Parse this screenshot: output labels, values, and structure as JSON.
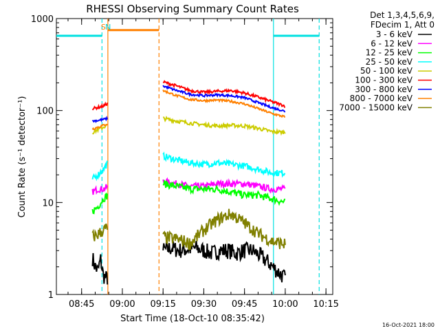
{
  "chart_data": {
    "type": "line",
    "title": "RHESSI Observing Summary Count Rates",
    "xlabel": "Start Time (18-Oct-10 08:35:42)",
    "ylabel": "Count Rate (s⁻¹ detector⁻¹)",
    "yscale": "log",
    "ylim": [
      1,
      1000
    ],
    "xlim": [
      "08:35:42",
      "10:17:30"
    ],
    "y_ticks": [
      "1",
      "10",
      "100",
      "1000"
    ],
    "x_ticks": [
      "08:45",
      "09:00",
      "09:15",
      "09:30",
      "09:45",
      "10:00",
      "10:15"
    ],
    "legend_header": [
      "Det 1,3,4,5,6,9,",
      "FDecim 1, Att 0"
    ],
    "legend_position": "top-right, outside plot",
    "footer": "16-Oct-2021 18:00",
    "grid": false,
    "annotations": [
      {
        "label": "S",
        "x": "08:53:00",
        "color": "#ff8000"
      },
      {
        "label": "N",
        "x": "08:54:45",
        "color": "#00cccc"
      }
    ],
    "flags": [
      {
        "name": "night",
        "color": "#00e0e0",
        "level": 650,
        "spans": [
          [
            "08:35:42",
            "08:52:30"
          ],
          [
            "09:55:40",
            "10:12:30"
          ]
        ]
      },
      {
        "name": "saa",
        "color": "#ff8000",
        "level": 750,
        "spans": [
          [
            "08:54:40",
            "09:13:30"
          ]
        ]
      }
    ],
    "vertical_lines": [
      {
        "x": "08:52:30",
        "color": "#00e0e0",
        "dash": true
      },
      {
        "x": "08:54:40",
        "color": "#ff8000",
        "dash": false
      },
      {
        "x": "09:13:30",
        "color": "#ff8000",
        "dash": true
      },
      {
        "x": "09:55:40",
        "color": "#00e0e0",
        "dash": false
      },
      {
        "x": "10:12:30",
        "color": "#00e0e0",
        "dash": true
      }
    ],
    "series": [
      {
        "name": "3 - 6 keV",
        "color": "#000000",
        "segments": [
          {
            "x": [
              "08:49:00",
              "08:50:00",
              "08:51:00",
              "08:52:00",
              "08:53:00",
              "08:54:00",
              "08:54:40"
            ],
            "y": [
              2.5,
              2.0,
              1.8,
              2.4,
              1.6,
              1.5,
              1.5
            ]
          },
          {
            "x": [
              "09:15:00",
              "09:18:00",
              "09:21:00",
              "09:24:00",
              "09:27:00",
              "09:30:00",
              "09:33:00",
              "09:36:00",
              "09:39:00",
              "09:42:00",
              "09:45:00",
              "09:48:00",
              "09:51:00",
              "09:54:00",
              "09:57:00",
              "10:00:00"
            ],
            "y": [
              3.0,
              3.2,
              3.0,
              3.1,
              3.2,
              3.0,
              2.8,
              3.0,
              3.0,
              2.8,
              3.0,
              3.0,
              2.6,
              2.2,
              1.8,
              1.5
            ]
          }
        ]
      },
      {
        "name": "6 - 12 keV",
        "color": "#ff00ff",
        "segments": [
          {
            "x": [
              "08:49:00",
              "08:51:00",
              "08:53:00",
              "08:54:40"
            ],
            "y": [
              13,
              14,
              14,
              15
            ]
          },
          {
            "x": [
              "09:15:00",
              "09:20:00",
              "09:25:00",
              "09:30:00",
              "09:35:00",
              "09:40:00",
              "09:45:00",
              "09:50:00",
              "09:55:00",
              "10:00:00"
            ],
            "y": [
              17,
              16,
              15,
              15,
              16,
              16,
              16,
              15,
              14,
              14
            ]
          }
        ]
      },
      {
        "name": "12 - 25 keV",
        "color": "#00ff00",
        "segments": [
          {
            "x": [
              "08:49:00",
              "08:51:00",
              "08:53:00",
              "08:54:40"
            ],
            "y": [
              8,
              9,
              11,
              12
            ]
          },
          {
            "x": [
              "09:15:00",
              "09:20:00",
              "09:25:00",
              "09:30:00",
              "09:35:00",
              "09:40:00",
              "09:45:00",
              "09:50:00",
              "09:55:00",
              "10:00:00"
            ],
            "y": [
              16,
              15,
              14,
              14,
              14,
              13,
              12,
              12,
              11,
              10
            ]
          }
        ]
      },
      {
        "name": "25 - 50 keV",
        "color": "#00ffff",
        "segments": [
          {
            "x": [
              "08:49:00",
              "08:51:00",
              "08:53:00",
              "08:54:40"
            ],
            "y": [
              18,
              20,
              23,
              27
            ]
          },
          {
            "x": [
              "09:15:00",
              "09:20:00",
              "09:25:00",
              "09:30:00",
              "09:35:00",
              "09:40:00",
              "09:45:00",
              "09:50:00",
              "09:55:00",
              "10:00:00"
            ],
            "y": [
              32,
              29,
              27,
              26,
              27,
              26,
              25,
              23,
              21,
              21
            ]
          }
        ]
      },
      {
        "name": "50 - 100 keV",
        "color": "#cccc00",
        "segments": [
          {
            "x": [
              "08:49:00",
              "08:51:00",
              "08:53:00",
              "08:54:40"
            ],
            "y": [
              58,
              62,
              66,
              70
            ]
          },
          {
            "x": [
              "09:15:00",
              "09:20:00",
              "09:25:00",
              "09:30:00",
              "09:35:00",
              "09:40:00",
              "09:45:00",
              "09:50:00",
              "09:55:00",
              "10:00:00"
            ],
            "y": [
              82,
              77,
              73,
              70,
              68,
              69,
              68,
              64,
              59,
              58
            ]
          }
        ]
      },
      {
        "name": "100 - 300 keV",
        "color": "#ff0000",
        "segments": [
          {
            "x": [
              "08:49:00",
              "08:51:00",
              "08:53:00",
              "08:54:40"
            ],
            "y": [
              105,
              108,
              112,
              120
            ]
          },
          {
            "x": [
              "09:15:00",
              "09:20:00",
              "09:25:00",
              "09:30:00",
              "09:35:00",
              "09:40:00",
              "09:45:00",
              "09:50:00",
              "09:55:00",
              "10:00:00"
            ],
            "y": [
              205,
              185,
              165,
              158,
              162,
              165,
              155,
              140,
              125,
              112
            ]
          }
        ]
      },
      {
        "name": "300 - 800 keV",
        "color": "#0000ff",
        "segments": [
          {
            "x": [
              "08:49:00",
              "08:51:00",
              "08:53:00",
              "08:54:40"
            ],
            "y": [
              77,
              78,
              80,
              82
            ]
          },
          {
            "x": [
              "09:15:00",
              "09:20:00",
              "09:25:00",
              "09:30:00",
              "09:35:00",
              "09:40:00",
              "09:45:00",
              "09:50:00",
              "09:55:00",
              "10:00:00"
            ],
            "y": [
              185,
              165,
              150,
              145,
              148,
              145,
              138,
              122,
              108,
              98
            ]
          }
        ]
      },
      {
        "name": "800 - 7000 keV",
        "color": "#ff8000",
        "segments": [
          {
            "x": [
              "08:49:00",
              "08:51:00",
              "08:53:00",
              "08:54:40"
            ],
            "y": [
              63,
              66,
              69,
              72
            ]
          },
          {
            "x": [
              "09:15:00",
              "09:20:00",
              "09:25:00",
              "09:30:00",
              "09:35:00",
              "09:40:00",
              "09:45:00",
              "09:50:00",
              "09:55:00",
              "10:00:00"
            ],
            "y": [
              165,
              145,
              132,
              128,
              130,
              126,
              118,
              105,
              93,
              85
            ]
          }
        ]
      },
      {
        "name": "7000 - 15000 keV",
        "color": "#808000",
        "segments": [
          {
            "x": [
              "08:49:00",
              "08:51:00",
              "08:53:00",
              "08:54:40"
            ],
            "y": [
              4.2,
              4.5,
              5.0,
              5.3
            ]
          },
          {
            "x": [
              "09:15:00",
              "09:20:00",
              "09:25:00",
              "09:30:00",
              "09:35:00",
              "09:40:00",
              "09:45:00",
              "09:50:00",
              "09:55:00",
              "10:00:00"
            ],
            "y": [
              4.2,
              4.0,
              3.6,
              5.0,
              6.5,
              7.5,
              6.0,
              4.6,
              3.8,
              3.5
            ]
          }
        ]
      }
    ]
  }
}
